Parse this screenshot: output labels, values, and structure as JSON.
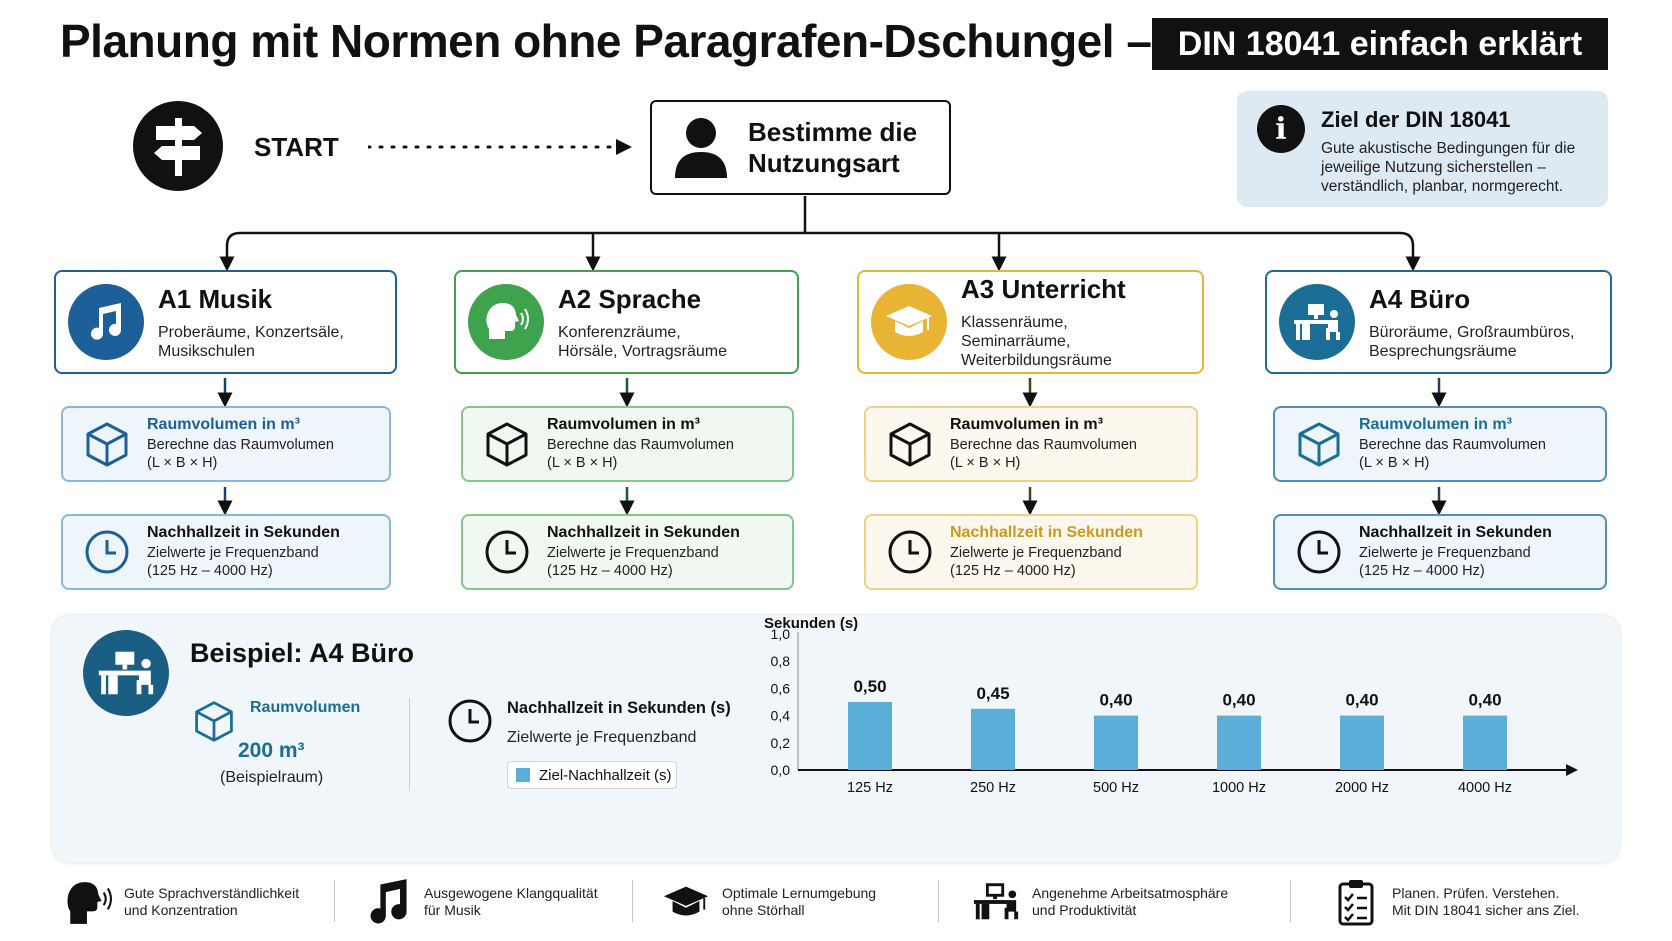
{
  "header": {
    "title": "Planung mit Normen ohne Paragrafen-Dschungel –",
    "badge": "DIN 18041 einfach erklärt"
  },
  "start": {
    "icon": "signpost-icon",
    "label": "START"
  },
  "usage": {
    "icon": "person-icon",
    "label": "Bestimme die\nNutzungsart"
  },
  "goal": {
    "icon": "info-icon",
    "title": "Ziel der DIN 18041",
    "text": "Gute akustische Bedingungen für die jeweilige Nutzung sicherstellen – verständlich, planbar, normgerecht."
  },
  "columns": [
    {
      "id": "a1",
      "title": "A1 Musik",
      "subtitle": "Proberäume, Konzertsäle, Musikschulen",
      "icon": "music-note-icon",
      "color": "#1c5f99",
      "step1_title": "Raumvolumen in m³",
      "step1_desc": "Berechne das Raumvolumen (L × B × H)",
      "step2_title": "Nachhallzeit in Sekunden",
      "step2_desc": "Zielwerte je Frequenzband (125 Hz – 4000 Hz)"
    },
    {
      "id": "a2",
      "title": "A2 Sprache",
      "subtitle": "Konferenzräume, Hörsäle, Vortragsräume",
      "icon": "speaking-head-icon",
      "color": "#3fa34d",
      "step1_title": "Raumvolumen in m³",
      "step1_desc": "Berechne das Raumvolumen (L × B × H)",
      "step2_title": "Nachhallzeit in Sekunden",
      "step2_desc": "Zielwerte je Frequenzband (125 Hz – 4000 Hz)"
    },
    {
      "id": "a3",
      "title": "A3 Unterricht",
      "subtitle": "Klassenräume, Seminarräume, Weiterbildungsräume",
      "icon": "graduation-cap-icon",
      "color": "#e9b334",
      "step1_title": "Raumvolumen in m³",
      "step1_desc": "Berechne das Raumvolumen (L × B × H)",
      "step2_title": "Nachhallzeit in Sekunden",
      "step2_desc": "Zielwerte je Frequenzband (125 Hz – 4000 Hz)"
    },
    {
      "id": "a4",
      "title": "A4 Büro",
      "subtitle": "Büroräume, Großraumbüros, Besprechungsräume",
      "icon": "office-desk-icon",
      "color": "#1a6e95",
      "step1_title": "Raumvolumen in m³",
      "step1_desc": "Berechne das Raumvolumen (L × B × H)",
      "step2_title": "Nachhallzeit in Sekunden",
      "step2_desc": "Zielwerte je Frequenzband (125 Hz – 4000 Hz)"
    }
  ],
  "example": {
    "icon": "office-desk-icon",
    "title": "Beispiel: A4 Büro",
    "volume_label": "Raumvolumen",
    "volume_value": "200 m³",
    "volume_note": "(Beispielraum)",
    "rt_title": "Nachhallzeit in Sekunden (s)",
    "rt_desc": "Zielwerte je Frequenzband",
    "legend": "Ziel-Nachhallzeit (s)"
  },
  "chart_data": {
    "type": "bar",
    "ylabel": "Sekunden (s)",
    "categories": [
      "125 Hz",
      "250 Hz",
      "500 Hz",
      "1000 Hz",
      "2000 Hz",
      "4000 Hz"
    ],
    "series": [
      {
        "name": "Ziel-Nachhallzeit (s)",
        "values": [
          0.5,
          0.45,
          0.4,
          0.4,
          0.4,
          0.4
        ]
      }
    ],
    "value_labels": [
      "0,50",
      "0,45",
      "0,40",
      "0,40",
      "0,40",
      "0,40"
    ],
    "yticks": [
      "0,0",
      "0,2",
      "0,4",
      "0,6",
      "0,8",
      "1,0"
    ],
    "ylim": [
      0,
      1.0
    ],
    "bar_color": "#5aaed8",
    "grid": false,
    "legend_position": "left"
  },
  "footer": [
    {
      "icon": "speaking-head-icon",
      "text": "Gute Sprachverständlichkeit\nund Konzentration"
    },
    {
      "icon": "music-note-icon",
      "text": "Ausgewogene Klangqualität\nfür Musik"
    },
    {
      "icon": "graduation-cap-icon",
      "text": "Optimale Lernumgebung\nohne Störhall"
    },
    {
      "icon": "office-desk-icon",
      "text": "Angenehme Arbeitsatmosphäre\nund Produktivität"
    },
    {
      "icon": "checklist-icon",
      "text": "Planen. Prüfen. Verstehen.\nMit DIN 18041 sicher ans Ziel."
    }
  ]
}
